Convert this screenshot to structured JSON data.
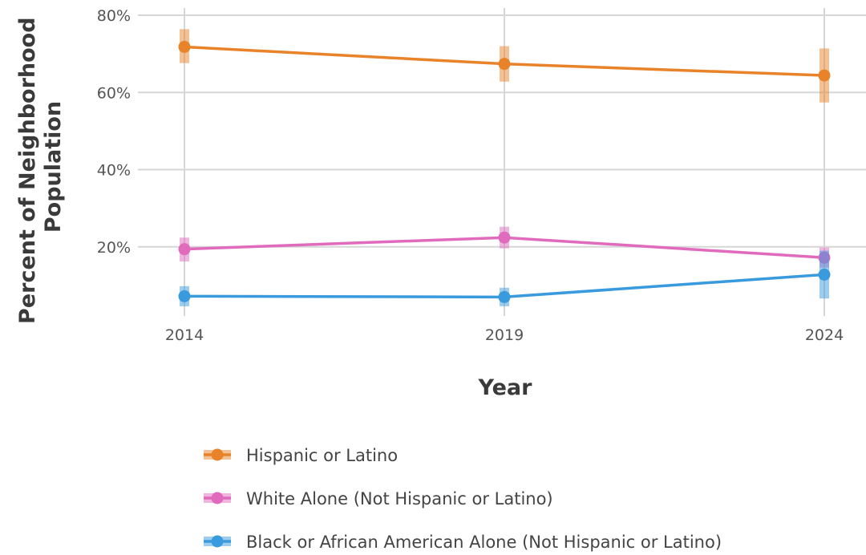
{
  "chart_data": {
    "type": "line",
    "title": "",
    "xlabel": "Year",
    "ylabel": "Percent of Neighborhood Population",
    "ylabel_lines": [
      "Percent of Neighborhood",
      "Population"
    ],
    "x": [
      "2014",
      "2019",
      "2024"
    ],
    "ylim": [
      0,
      80
    ],
    "yticks": [
      20,
      40,
      60,
      80
    ],
    "ytick_labels": [
      "20%",
      "40%",
      "60%",
      "80%"
    ],
    "grid": true,
    "legend_position": "bottom",
    "series": [
      {
        "name": "Hispanic or Latino",
        "color": "#e8832a",
        "values": [
          71.8,
          67.4,
          64.4
        ],
        "error_low": [
          67.6,
          62.8,
          57.4
        ],
        "error_high": [
          76.4,
          72.0,
          71.4
        ]
      },
      {
        "name": "White Alone (Not Hispanic or Latino)",
        "color": "#e06bbd",
        "values": [
          19.4,
          22.4,
          17.2
        ],
        "error_low": [
          16.2,
          19.6,
          14.6
        ],
        "error_high": [
          22.4,
          25.2,
          19.8
        ]
      },
      {
        "name": "Black or African American Alone (Not Hispanic or Latino)",
        "color": "#3a9ade",
        "values": [
          7.2,
          7.0,
          12.8
        ],
        "error_low": [
          4.6,
          4.6,
          6.6
        ],
        "error_high": [
          9.8,
          9.4,
          19.0
        ]
      }
    ]
  }
}
